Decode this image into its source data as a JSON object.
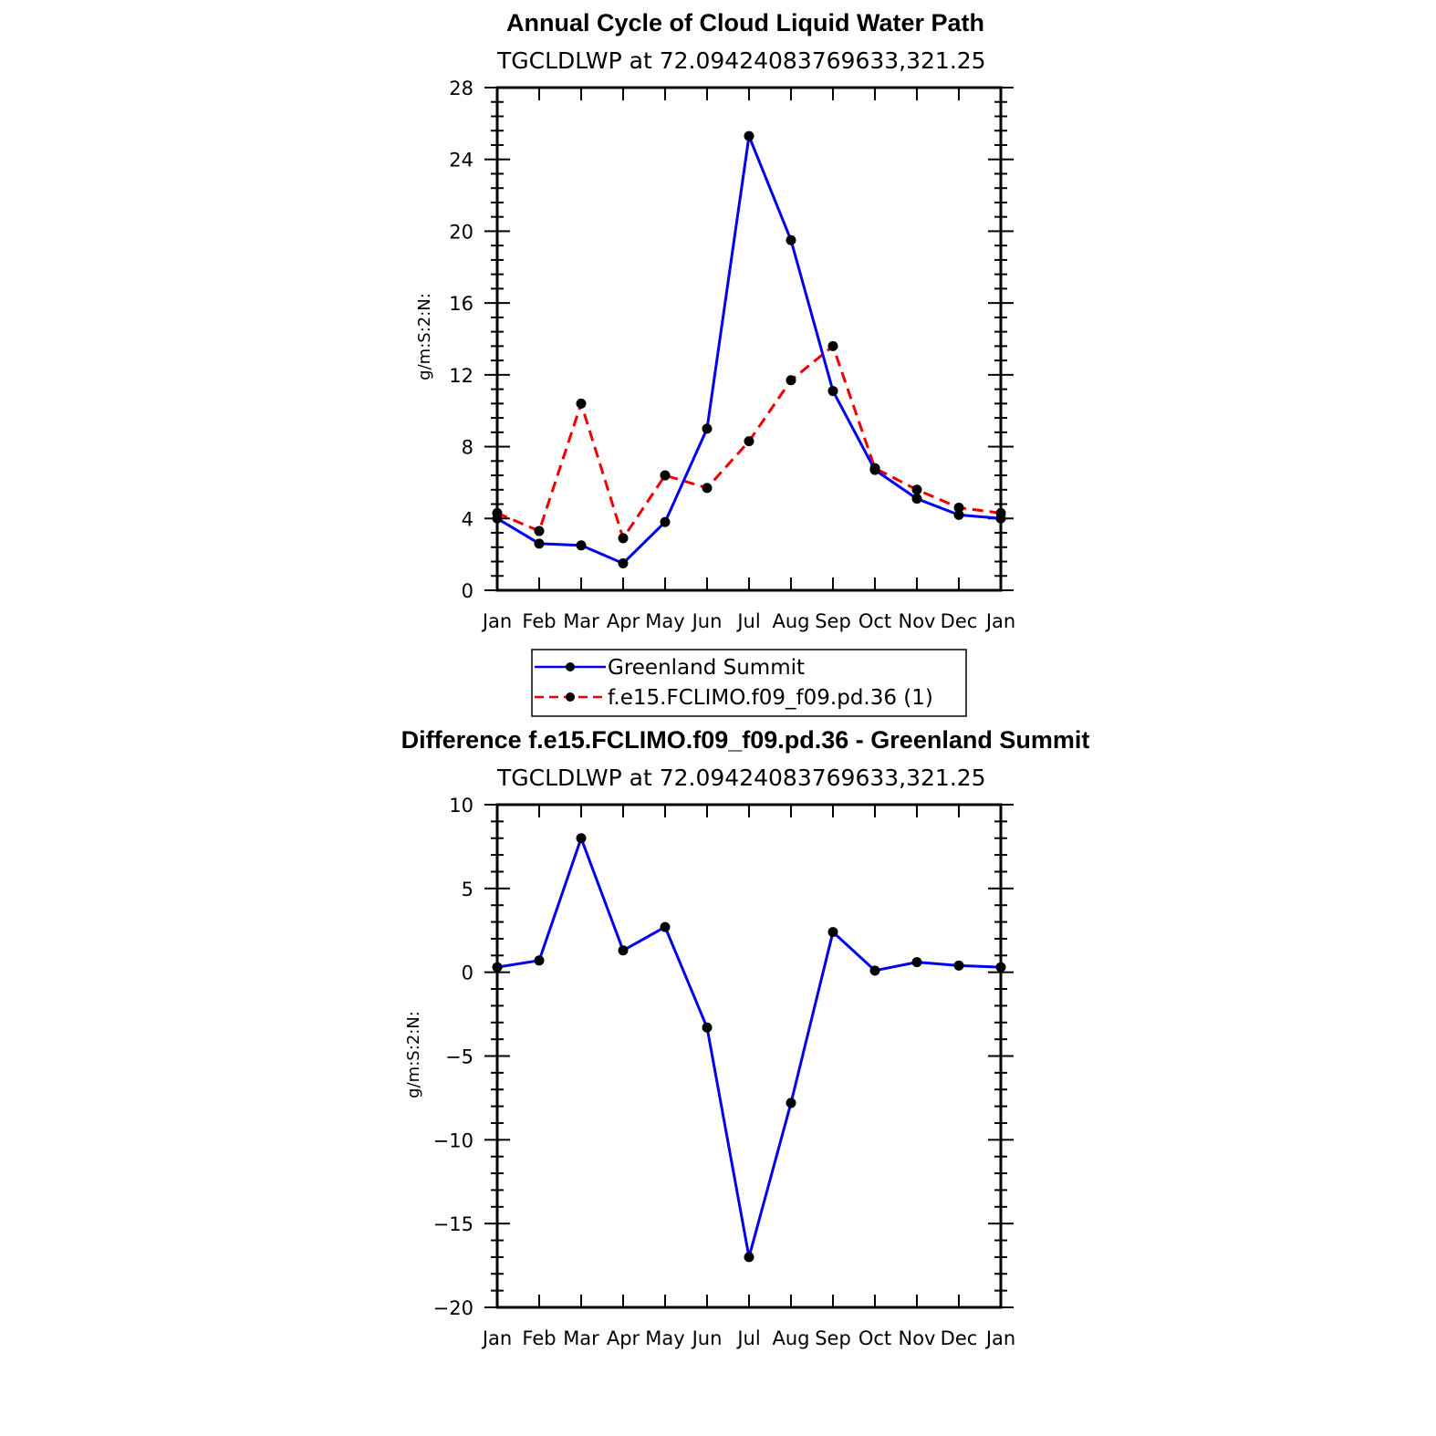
{
  "chart_data": [
    {
      "type": "line",
      "title": "Annual Cycle of Cloud Liquid Water Path",
      "subtitle": "TGCLDLWP at 72.09424083769633,321.25",
      "ylabel": "g/m:S:2:N:",
      "xlabel": "",
      "categories": [
        "Jan",
        "Feb",
        "Mar",
        "Apr",
        "May",
        "Jun",
        "Jul",
        "Aug",
        "Sep",
        "Oct",
        "Nov",
        "Dec",
        "Jan"
      ],
      "ylim": [
        0,
        28
      ],
      "yticks": [
        0,
        4,
        8,
        12,
        16,
        20,
        24,
        28
      ],
      "yticklabels": [
        "0",
        "4",
        "8",
        "12",
        "16",
        "20",
        "24",
        "28"
      ],
      "series": [
        {
          "name": "Greenland Summit",
          "color": "#0000ee",
          "dash": "solid",
          "values": [
            4.0,
            2.6,
            2.5,
            1.5,
            3.8,
            9.0,
            25.3,
            19.5,
            11.1,
            6.7,
            5.1,
            4.2,
            4.0
          ]
        },
        {
          "name": "f.e15.FCLIMO.f09_f09.pd.36 (1)",
          "color": "#ee0000",
          "dash": "dashed",
          "values": [
            4.3,
            3.3,
            10.4,
            2.9,
            6.4,
            5.7,
            8.3,
            11.7,
            13.6,
            6.8,
            5.6,
            4.6,
            4.3
          ]
        }
      ],
      "legend_position": "bottom"
    },
    {
      "type": "line",
      "title": "Difference f.e15.FCLIMO.f09_f09.pd.36 - Greenland Summit",
      "subtitle": "TGCLDLWP at 72.09424083769633,321.25",
      "ylabel": "g/m:S:2:N:",
      "xlabel": "",
      "categories": [
        "Jan",
        "Feb",
        "Mar",
        "Apr",
        "May",
        "Jun",
        "Jul",
        "Aug",
        "Sep",
        "Oct",
        "Nov",
        "Dec",
        "Jan"
      ],
      "ylim": [
        -20,
        10
      ],
      "yticks": [
        -20,
        -15,
        -10,
        -5,
        0,
        5,
        10
      ],
      "yticklabels": [
        "−20",
        "−15",
        "−10",
        "−5",
        "0",
        "5",
        "10"
      ],
      "series": [
        {
          "color": "#0000ee",
          "dash": "solid",
          "values": [
            0.3,
            0.7,
            8.0,
            1.3,
            2.7,
            -3.3,
            -17.0,
            -7.8,
            2.4,
            0.1,
            0.6,
            0.4,
            0.3
          ]
        }
      ]
    }
  ]
}
